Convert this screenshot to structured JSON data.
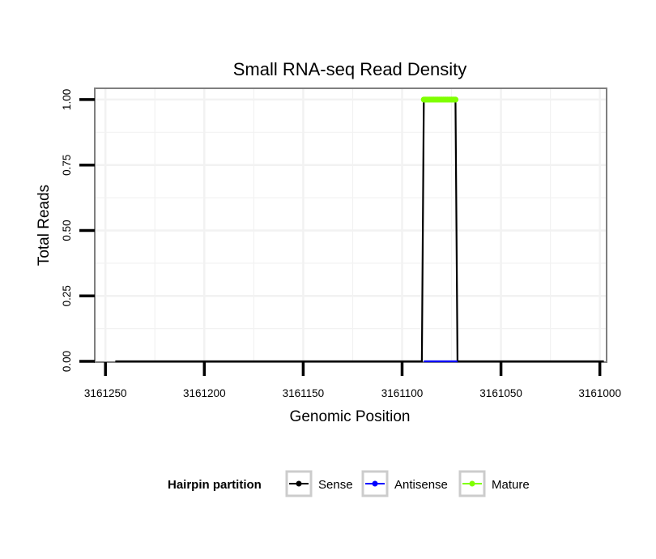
{
  "chart_data": {
    "type": "line",
    "title": "Small RNA-seq Read Density",
    "xlabel": "Genomic Position",
    "ylabel": "Total Reads",
    "xlim": [
      3161255,
      3160997
    ],
    "x_reversed": true,
    "ylim": [
      0,
      1.04
    ],
    "x_ticks": [
      3161250,
      3161200,
      3161150,
      3161100,
      3161050,
      3161000
    ],
    "x_tick_labels": [
      "3161250",
      "3161200",
      "3161150",
      "3161100",
      "3161050",
      "3161000"
    ],
    "y_ticks": [
      0,
      0.25,
      0.5,
      0.75,
      1.0
    ],
    "y_tick_labels": [
      "0.00",
      "0.25",
      "0.50",
      "0.75",
      "1.00"
    ],
    "grid": true,
    "legend": {
      "title": "Hairpin partition",
      "position": "bottom",
      "entries": [
        "Sense",
        "Antisense",
        "Mature"
      ]
    },
    "series": [
      {
        "name": "Sense",
        "color": "#000000",
        "x": [
          3161245,
          3161090,
          3161089,
          3161073,
          3161072,
          3160998
        ],
        "values": [
          0,
          0,
          1,
          1,
          0,
          0
        ]
      },
      {
        "name": "Antisense",
        "color": "#0000ff",
        "x": [
          3161089,
          3161072
        ],
        "values": [
          0,
          0
        ]
      },
      {
        "name": "Mature",
        "color": "#7fff00",
        "x": [
          3161089,
          3161073
        ],
        "values": [
          1,
          1
        ]
      }
    ]
  }
}
